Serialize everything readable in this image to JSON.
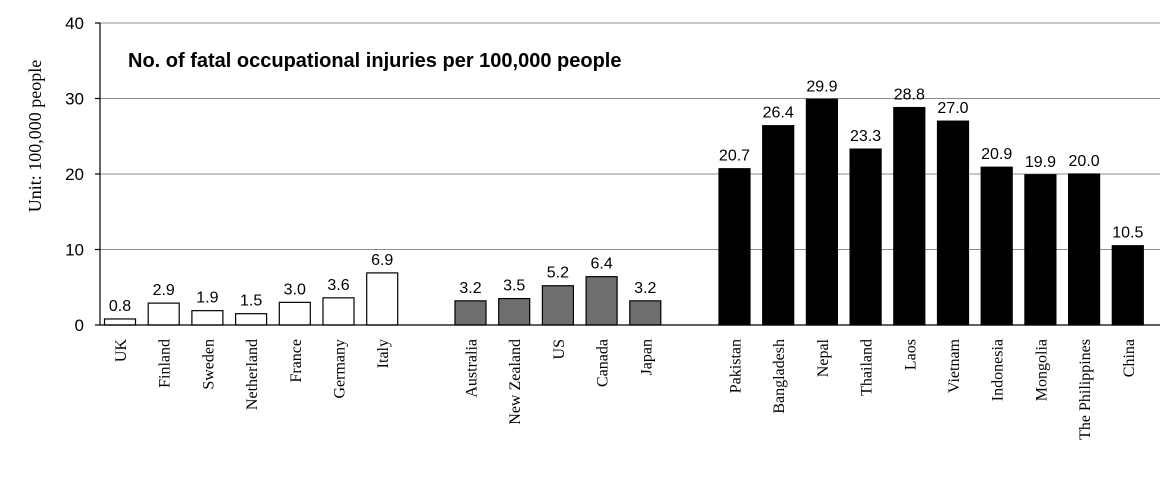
{
  "chart_data": {
    "type": "bar",
    "title": "No. of fatal occupational injuries per 100,000 people",
    "ylabel": "Unit: 100,000 people",
    "xlabel": "",
    "ylim": [
      0,
      40
    ],
    "yticks": [
      0,
      10,
      20,
      30,
      40
    ],
    "grid": true,
    "legend": "none",
    "groups": [
      {
        "fill": "#ffffff",
        "categories": [
          "UK",
          "Finland",
          "Sweden",
          "Netherland",
          "France",
          "Germany",
          "Italy"
        ],
        "values": [
          0.8,
          2.9,
          1.9,
          1.5,
          3.0,
          3.6,
          6.9
        ],
        "labels": [
          "0.8",
          "2.9",
          "1.9",
          "1.5",
          "3.0",
          "3.6",
          "6.9"
        ]
      },
      {
        "fill": "#6e6e6e",
        "categories": [
          "Australia",
          "New Zealand",
          "US",
          "Canada",
          "Japan"
        ],
        "values": [
          3.2,
          3.5,
          5.2,
          6.4,
          3.2
        ],
        "labels": [
          "3.2",
          "3.5",
          "5.2",
          "6.4",
          "3.2"
        ]
      },
      {
        "fill": "#000000",
        "categories": [
          "Pakistan",
          "Bangladesh",
          "Nepal",
          "Thailand",
          "Laos",
          "Vietnam",
          "Indonesia",
          "Mongolia",
          "The Philippines",
          "China"
        ],
        "values": [
          20.7,
          26.4,
          29.9,
          23.3,
          28.8,
          27.0,
          20.9,
          19.9,
          20.0,
          10.5
        ],
        "labels": [
          "20.7",
          "26.4",
          "29.9",
          "23.3",
          "28.8",
          "27.0",
          "20.9",
          "19.9",
          "20.0",
          "10.5"
        ]
      }
    ]
  }
}
